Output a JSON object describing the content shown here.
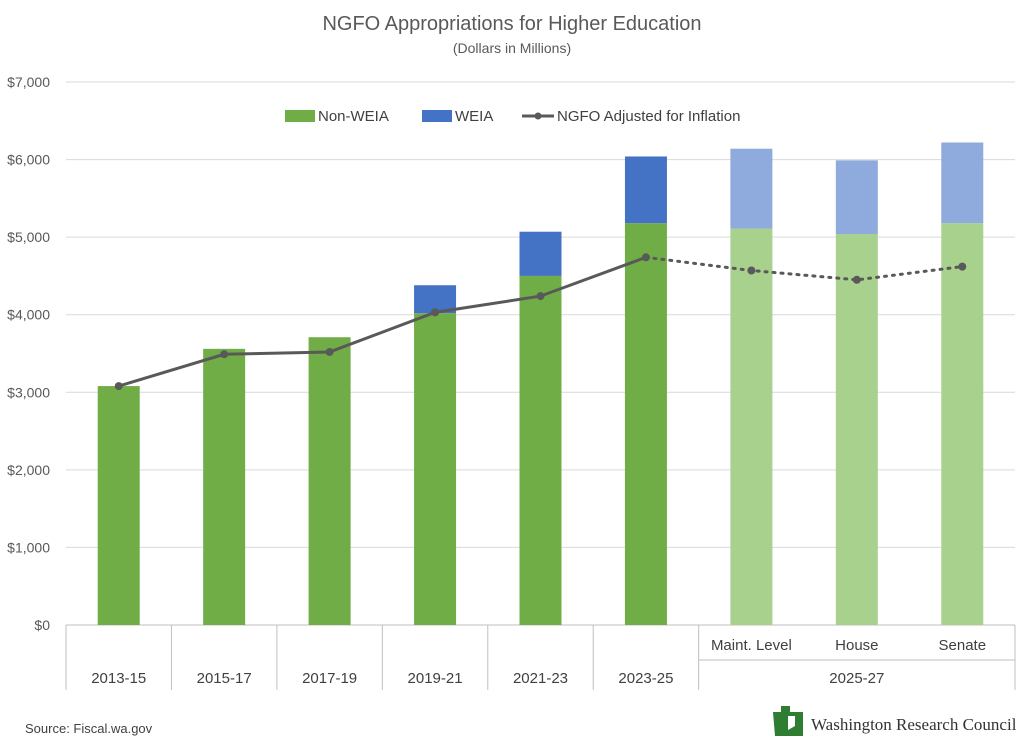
{
  "chart_data": {
    "type": "bar",
    "stacked": true,
    "title": "NGFO Appropriations for Higher Education",
    "subtitle": "(Dollars in Millions)",
    "ylim": [
      0,
      7000
    ],
    "yticks": [
      0,
      1000,
      2000,
      3000,
      4000,
      5000,
      6000,
      7000
    ],
    "ytick_labels": [
      "$0",
      "$1,000",
      "$2,000",
      "$3,000",
      "$4,000",
      "$5,000",
      "$6,000",
      "$7,000"
    ],
    "categories": [
      "2013-15",
      "2015-17",
      "2017-19",
      "2019-21",
      "2021-23",
      "2023-25",
      "Maint. Level",
      "House",
      "Senate"
    ],
    "group_label": "2025-27",
    "grouped_categories": [
      "Maint. Level",
      "House",
      "Senate"
    ],
    "projected_from_index": 6,
    "series": [
      {
        "name": "Non-WEIA",
        "type": "bar",
        "color": "#70ad47",
        "projected_color": "#a9d18e",
        "values": [
          3080,
          3560,
          3710,
          4020,
          4500,
          5180,
          5110,
          5040,
          5180
        ]
      },
      {
        "name": "WEIA",
        "type": "bar",
        "color": "#4472c4",
        "projected_color": "#8faadc",
        "values": [
          0,
          0,
          0,
          360,
          570,
          860,
          1030,
          950,
          1040
        ]
      },
      {
        "name": "NGFO Adjusted for Inflation",
        "type": "line",
        "color": "#595959",
        "values": [
          3080,
          3490,
          3520,
          4030,
          4240,
          4740,
          4570,
          4450,
          4620
        ],
        "dashed_from_index": 5
      }
    ],
    "legend_position": "top"
  },
  "footer": {
    "source": "Source: Fiscal.wa.gov",
    "brand": "Washington Research Council",
    "brand_color": "#2e7d32"
  }
}
